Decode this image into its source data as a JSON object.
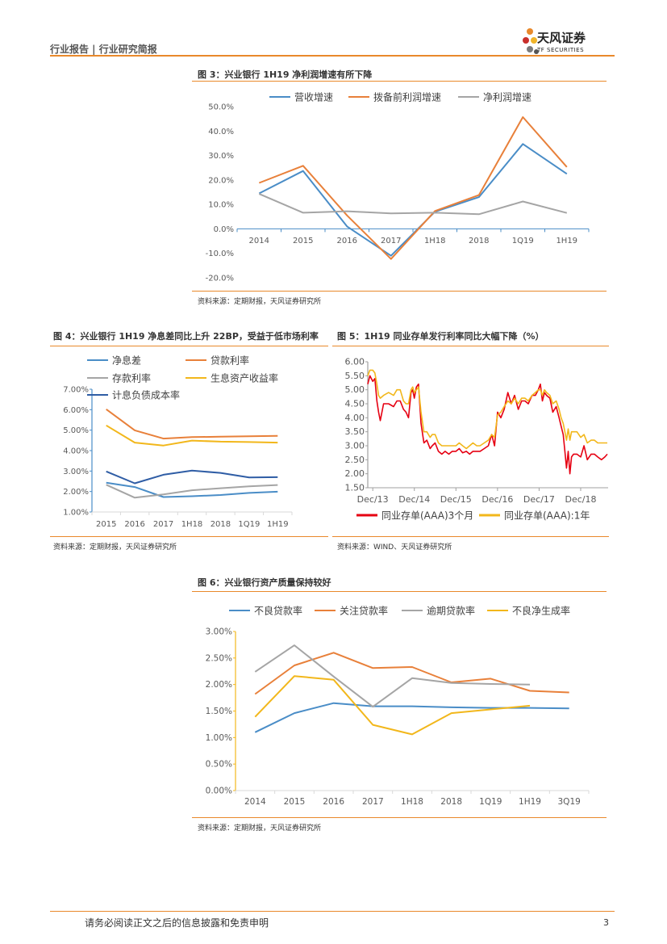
{
  "header": {
    "label": "行业报告 | 行业研究简报"
  },
  "logo": {
    "name": "天风证券",
    "sub": "TF SECURITIES",
    "petal_colors": [
      "#E9892B",
      "#C9302C",
      "#7B7B7B",
      "#F0B429",
      "#555555"
    ]
  },
  "figures": [
    {
      "title": "图 3：兴业银行 1H19 净利润增速有所下降",
      "source": "资料来源：定期财报，天风证券研究所"
    },
    {
      "title": "图 4：兴业银行 1H19 净息差同比上升 22BP，受益于低市场利率",
      "source": "资料来源：定期财报，天风证券研究所"
    },
    {
      "title": "图 5：1H19 同业存单发行利率同比大幅下降（%）",
      "source": "资料来源：WIND、天风证券研究所"
    },
    {
      "title": "图 6：兴业银行资产质量保持较好",
      "source": "资料来源：定期财报，天风证券研究所"
    }
  ],
  "footer": {
    "text": "请务必阅读正文之后的信息披露和免责申明",
    "page": "3"
  },
  "chart_data": [
    {
      "id": "fig3",
      "type": "line",
      "categories": [
        "2014",
        "2015",
        "2016",
        "2017",
        "1H18",
        "2018",
        "1Q19",
        "1H19"
      ],
      "ylim": [
        -20,
        50
      ],
      "yticks": [
        -20,
        -10,
        0,
        10,
        20,
        30,
        40,
        50
      ],
      "ytick_labels": [
        "-20.0%",
        "-10.0%",
        "0.0%",
        "10.0%",
        "20.0%",
        "30.0%",
        "40.0%",
        "50.0%"
      ],
      "series": [
        {
          "name": "营收增速",
          "color": "#4A8DC7",
          "values": [
            14.5,
            23.7,
            1.0,
            -11.0,
            7.0,
            13.0,
            34.7,
            22.5
          ]
        },
        {
          "name": "拨备前利润增速",
          "color": "#E8803A",
          "values": [
            18.8,
            25.8,
            5.5,
            -12.3,
            7.3,
            13.8,
            45.7,
            25.3
          ]
        },
        {
          "name": "净利润增速",
          "color": "#A5A5A5",
          "values": [
            14.3,
            6.6,
            7.2,
            6.3,
            6.6,
            6.0,
            11.2,
            6.5
          ]
        }
      ]
    },
    {
      "id": "fig4",
      "type": "line",
      "categories": [
        "2015",
        "2016",
        "2017",
        "1H18",
        "2018",
        "1Q19",
        "1H19"
      ],
      "ylim": [
        1,
        7
      ],
      "yticks": [
        1,
        2,
        3,
        4,
        5,
        6,
        7
      ],
      "ytick_labels": [
        "1.00%",
        "2.00%",
        "3.00%",
        "4.00%",
        "5.00%",
        "6.00%",
        "7.00%"
      ],
      "series": [
        {
          "name": "净息差",
          "color": "#4A8DC7",
          "values": [
            2.43,
            2.22,
            1.73,
            1.77,
            1.83,
            1.93,
            1.99
          ]
        },
        {
          "name": "贷款利率",
          "color": "#E8803A",
          "values": [
            6.02,
            4.99,
            4.59,
            4.66,
            4.68,
            4.7,
            4.72
          ]
        },
        {
          "name": "存款利率",
          "color": "#A5A5A5",
          "values": [
            2.33,
            1.7,
            1.86,
            2.06,
            2.16,
            2.25,
            2.32
          ]
        },
        {
          "name": "生息资产收益率",
          "color": "#F2B71B",
          "values": [
            5.23,
            4.39,
            4.25,
            4.49,
            4.44,
            4.42,
            4.39
          ]
        },
        {
          "name": "计息负债成本率",
          "color": "#2F5DA5",
          "values": [
            2.98,
            2.4,
            2.82,
            3.02,
            2.91,
            2.69,
            2.7
          ]
        }
      ]
    },
    {
      "id": "fig5",
      "type": "line",
      "x_tick_labels": [
        "Dec/13",
        "Dec/14",
        "Dec/15",
        "Dec/16",
        "Dec/17",
        "Dec/18"
      ],
      "x_range": [
        2013.8,
        2019.58
      ],
      "x_ticks": [
        2013.92,
        2014.92,
        2015.92,
        2016.92,
        2017.92,
        2018.92
      ],
      "ylim": [
        1.5,
        6.0
      ],
      "yticks": [
        1.5,
        2.0,
        2.5,
        3.0,
        3.5,
        4.0,
        4.5,
        5.0,
        5.5,
        6.0
      ],
      "ytick_labels": [
        "1.50",
        "2.00",
        "2.50",
        "3.00",
        "3.50",
        "4.00",
        "4.50",
        "5.00",
        "5.50",
        "6.00"
      ],
      "series": [
        {
          "name": "同业存单(AAA)3个月",
          "color": "#E60012",
          "x": [
            2013.8,
            2013.85,
            2013.92,
            2013.97,
            2014.02,
            2014.06,
            2014.1,
            2014.18,
            2014.3,
            2014.42,
            2014.5,
            2014.58,
            2014.66,
            2014.72,
            2014.78,
            2014.84,
            2014.88,
            2014.92,
            2014.97,
            2015.02,
            2015.08,
            2015.15,
            2015.22,
            2015.3,
            2015.35,
            2015.42,
            2015.5,
            2015.58,
            2015.66,
            2015.75,
            2015.83,
            2015.92,
            2016.0,
            2016.08,
            2016.17,
            2016.25,
            2016.33,
            2016.42,
            2016.5,
            2016.6,
            2016.7,
            2016.78,
            2016.85,
            2016.92,
            2017.0,
            2017.08,
            2017.17,
            2017.25,
            2017.33,
            2017.42,
            2017.5,
            2017.58,
            2017.66,
            2017.75,
            2017.83,
            2017.9,
            2017.95,
            2018.0,
            2018.05,
            2018.1,
            2018.18,
            2018.25,
            2018.33,
            2018.4,
            2018.45,
            2018.5,
            2018.54,
            2018.58,
            2018.62,
            2018.66,
            2018.7,
            2018.75,
            2018.83,
            2018.92,
            2019.0,
            2019.08,
            2019.17,
            2019.25,
            2019.33,
            2019.42,
            2019.5,
            2019.56
          ],
          "values": [
            5.2,
            5.5,
            5.3,
            5.4,
            4.6,
            4.2,
            3.9,
            4.5,
            4.5,
            4.4,
            4.6,
            4.6,
            4.3,
            4.2,
            4.0,
            4.9,
            5.0,
            4.7,
            5.1,
            5.2,
            3.8,
            3.1,
            3.2,
            2.9,
            3.0,
            3.1,
            2.8,
            2.7,
            2.8,
            2.7,
            2.8,
            2.8,
            2.9,
            2.75,
            2.8,
            2.7,
            2.8,
            2.8,
            2.8,
            2.9,
            3.0,
            3.4,
            3.0,
            4.2,
            4.0,
            4.3,
            4.9,
            4.5,
            4.8,
            4.3,
            4.6,
            4.6,
            4.5,
            4.8,
            4.8,
            5.0,
            5.2,
            4.6,
            4.9,
            4.8,
            4.7,
            4.2,
            4.4,
            4.0,
            3.7,
            3.4,
            2.8,
            2.2,
            2.8,
            2.0,
            2.6,
            2.7,
            2.7,
            2.6,
            3.0,
            2.5,
            2.7,
            2.7,
            2.6,
            2.5,
            2.6,
            2.7
          ]
        },
        {
          "name": "同业存单(AAA):1年",
          "color": "#F2B71B",
          "x": [
            2013.8,
            2013.85,
            2013.92,
            2013.97,
            2014.02,
            2014.06,
            2014.1,
            2014.18,
            2014.3,
            2014.42,
            2014.5,
            2014.58,
            2014.66,
            2014.72,
            2014.78,
            2014.84,
            2014.88,
            2014.92,
            2014.97,
            2015.02,
            2015.08,
            2015.15,
            2015.22,
            2015.3,
            2015.35,
            2015.42,
            2015.5,
            2015.58,
            2015.66,
            2015.75,
            2015.83,
            2015.92,
            2016.0,
            2016.08,
            2016.17,
            2016.25,
            2016.33,
            2016.42,
            2016.5,
            2016.6,
            2016.7,
            2016.78,
            2016.85,
            2016.92,
            2017.0,
            2017.08,
            2017.17,
            2017.25,
            2017.33,
            2017.42,
            2017.5,
            2017.58,
            2017.66,
            2017.75,
            2017.83,
            2017.9,
            2017.95,
            2018.0,
            2018.05,
            2018.1,
            2018.18,
            2018.25,
            2018.33,
            2018.4,
            2018.45,
            2018.5,
            2018.54,
            2018.58,
            2018.62,
            2018.66,
            2018.7,
            2018.75,
            2018.83,
            2018.92,
            2019.0,
            2019.08,
            2019.17,
            2019.25,
            2019.33,
            2019.42,
            2019.5,
            2019.56
          ],
          "values": [
            5.5,
            5.7,
            5.7,
            5.6,
            5.2,
            4.8,
            4.7,
            4.8,
            4.9,
            4.8,
            5.0,
            5.0,
            4.6,
            4.5,
            4.5,
            5.0,
            5.1,
            4.9,
            5.0,
            5.1,
            4.2,
            3.5,
            3.5,
            3.3,
            3.4,
            3.4,
            3.1,
            3.0,
            3.0,
            3.0,
            3.0,
            3.0,
            3.1,
            3.0,
            2.9,
            3.0,
            3.1,
            3.0,
            3.0,
            3.1,
            3.2,
            3.4,
            3.3,
            4.1,
            4.2,
            4.4,
            4.6,
            4.5,
            4.7,
            4.5,
            4.7,
            4.7,
            4.6,
            4.8,
            4.9,
            5.0,
            5.0,
            4.8,
            5.0,
            4.9,
            4.8,
            4.5,
            4.6,
            4.3,
            4.0,
            3.8,
            3.5,
            3.2,
            3.6,
            3.2,
            3.5,
            3.5,
            3.5,
            3.3,
            3.4,
            3.1,
            3.2,
            3.2,
            3.1,
            3.1,
            3.1,
            3.1
          ]
        }
      ]
    },
    {
      "id": "fig6",
      "type": "line",
      "categories": [
        "2014",
        "2015",
        "2016",
        "2017",
        "1H18",
        "2018",
        "1Q19",
        "1H19",
        "3Q19"
      ],
      "ylim": [
        0,
        3
      ],
      "yticks": [
        0,
        0.5,
        1,
        1.5,
        2,
        2.5,
        3
      ],
      "ytick_labels": [
        "0.00%",
        "0.50%",
        "1.00%",
        "1.50%",
        "2.00%",
        "2.50%",
        "3.00%"
      ],
      "series": [
        {
          "name": "不良贷款率",
          "color": "#4A8DC7",
          "values": [
            1.1,
            1.46,
            1.65,
            1.59,
            1.59,
            1.57,
            1.56,
            1.56,
            1.55
          ]
        },
        {
          "name": "关注贷款率",
          "color": "#E8803A",
          "values": [
            1.82,
            2.36,
            2.6,
            2.31,
            2.33,
            2.04,
            2.11,
            1.88,
            1.85
          ]
        },
        {
          "name": "逾期贷款率",
          "color": "#A5A5A5",
          "values": [
            2.24,
            2.74,
            2.15,
            1.58,
            2.12,
            2.03,
            2.01,
            2.0,
            null
          ]
        },
        {
          "name": "不良净生成率",
          "color": "#F2B71B",
          "values": [
            1.39,
            2.16,
            2.09,
            1.24,
            1.06,
            1.46,
            1.53,
            1.6,
            null
          ]
        }
      ]
    }
  ]
}
